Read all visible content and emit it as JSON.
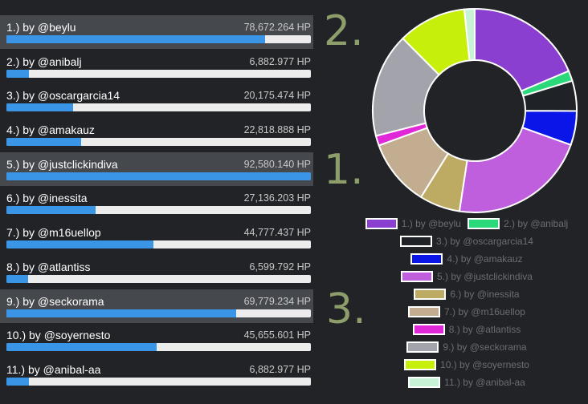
{
  "chart_data": {
    "type": "donut",
    "unit": "HP",
    "entries": [
      {
        "label": "1.) by @beylu",
        "value": 78672.264,
        "value_text": "78,672.264 HP",
        "color": "#8a3fd0",
        "highlight": true
      },
      {
        "label": "2.) by @anibalj",
        "value": 6882.977,
        "value_text": "6,882.977 HP",
        "color": "#2bd97a",
        "highlight": false
      },
      {
        "label": "3.) by @oscargarcia14",
        "value": 20175.474,
        "value_text": "20,175.474 HP",
        "color": "#1f2327",
        "highlight": false
      },
      {
        "label": "4.) by @amakauz",
        "value": 22818.888,
        "value_text": "22,818.888 HP",
        "color": "#0a16e8",
        "highlight": false
      },
      {
        "label": "5.) by @justclickindiva",
        "value": 92580.14,
        "value_text": "92,580.140 HP",
        "color": "#c05fde",
        "highlight": true
      },
      {
        "label": "6.) by @inessita",
        "value": 27136.203,
        "value_text": "27,136.203 HP",
        "color": "#bdaa63",
        "highlight": false
      },
      {
        "label": "7.) by @m16uellop",
        "value": 44777.437,
        "value_text": "44,777.437 HP",
        "color": "#c2ad91",
        "highlight": false
      },
      {
        "label": "8.) by @atlantiss",
        "value": 6599.792,
        "value_text": "6,599.792 HP",
        "color": "#e028d8",
        "highlight": false
      },
      {
        "label": "9.) by @seckorama",
        "value": 69779.234,
        "value_text": "69,779.234 HP",
        "color": "#a3a4ab",
        "highlight": true
      },
      {
        "label": "10.) by @soyernesto",
        "value": 45655.601,
        "value_text": "45,655.601 HP",
        "color": "#c6f00c",
        "highlight": false
      },
      {
        "label": "11.) by @anibal-aa",
        "value": 6882.977,
        "value_text": "6,882.977 HP",
        "color": "#c7f2d5",
        "highlight": false
      }
    ],
    "bar_max": 92580.14
  },
  "markers": [
    "1.",
    "2.",
    "3."
  ],
  "colors": {
    "bar_fill": "#3a95e6",
    "bar_track": "#ececec",
    "marker": "#8d9e6a",
    "background": "#212327"
  }
}
